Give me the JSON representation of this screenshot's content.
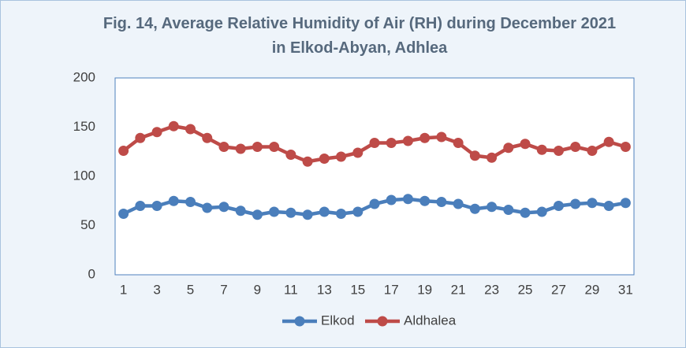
{
  "chart_data": {
    "type": "line",
    "title": "Fig. 14, Average Relative Humidity of Air (RH) during December 2021 in Elkod-Abyan,  Adhlea",
    "categories": [
      "1",
      null,
      "3",
      null,
      "5",
      null,
      "7",
      null,
      "9",
      null,
      "11",
      null,
      "13",
      null,
      "15",
      null,
      "17",
      null,
      "19",
      null,
      "21",
      null,
      "23",
      null,
      "25",
      null,
      "27",
      null,
      "29",
      null,
      "31"
    ],
    "series": [
      {
        "name": "Elkod",
        "color": "#4a7ebb",
        "values": [
          62,
          70,
          70,
          75,
          74,
          68,
          69,
          65,
          61,
          64,
          63,
          61,
          64,
          62,
          64,
          72,
          76,
          77,
          75,
          74,
          72,
          67,
          69,
          66,
          63,
          64,
          70,
          72,
          73,
          70,
          73
        ]
      },
      {
        "name": "Aldhalea",
        "color": "#be4b48",
        "values": [
          126,
          139,
          145,
          151,
          148,
          139,
          130,
          128,
          130,
          130,
          122,
          115,
          118,
          120,
          124,
          134,
          134,
          136,
          139,
          140,
          134,
          121,
          119,
          129,
          133,
          127,
          126,
          130,
          126,
          135,
          130
        ]
      }
    ],
    "ylim": [
      0,
      200
    ],
    "yticks": [
      0,
      50,
      100,
      150,
      200
    ],
    "grid": false,
    "legend": "bottom"
  }
}
